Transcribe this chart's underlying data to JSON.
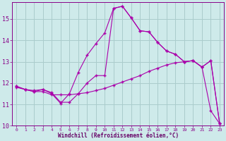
{
  "xlabel": "Windchill (Refroidissement éolien,°C)",
  "background_color": "#ceeaea",
  "grid_color": "#aacccc",
  "line_color": "#aa00aa",
  "xlim": [
    -0.5,
    23.5
  ],
  "ylim": [
    10,
    15.8
  ],
  "yticks": [
    10,
    11,
    12,
    13,
    14,
    15
  ],
  "xticks": [
    0,
    1,
    2,
    3,
    4,
    5,
    6,
    7,
    8,
    9,
    10,
    11,
    12,
    13,
    14,
    15,
    16,
    17,
    18,
    19,
    20,
    21,
    22,
    23
  ],
  "line1_x": [
    0,
    1,
    2,
    3,
    4,
    5,
    6,
    7,
    8,
    9,
    10,
    11,
    12,
    13,
    14,
    15,
    16,
    17,
    18,
    19,
    20,
    21,
    22,
    23
  ],
  "line1_y": [
    11.8,
    11.7,
    11.65,
    11.7,
    11.55,
    11.1,
    11.1,
    11.5,
    12.0,
    12.35,
    12.35,
    15.5,
    15.6,
    15.05,
    14.45,
    14.4,
    13.9,
    13.5,
    13.35,
    13.0,
    13.05,
    12.75,
    13.05,
    10.1
  ],
  "line2_x": [
    0,
    1,
    2,
    3,
    4,
    5,
    6,
    7,
    8,
    9,
    10,
    11,
    12,
    13,
    14,
    15,
    16,
    17,
    18,
    19,
    20,
    21,
    22,
    23
  ],
  "line2_y": [
    11.85,
    11.7,
    11.6,
    11.7,
    11.5,
    11.05,
    11.5,
    12.5,
    13.3,
    13.85,
    14.35,
    15.5,
    15.6,
    15.05,
    14.45,
    14.4,
    13.9,
    13.5,
    13.35,
    13.0,
    13.05,
    12.75,
    13.05,
    10.1
  ],
  "line3_x": [
    0,
    1,
    2,
    3,
    4,
    5,
    6,
    7,
    8,
    9,
    10,
    11,
    12,
    13,
    14,
    15,
    16,
    17,
    18,
    19,
    20,
    21,
    22,
    23
  ],
  "line3_y": [
    11.85,
    11.7,
    11.6,
    11.6,
    11.45,
    11.45,
    11.45,
    11.5,
    11.55,
    11.65,
    11.75,
    11.9,
    12.05,
    12.2,
    12.35,
    12.55,
    12.7,
    12.85,
    12.95,
    13.0,
    13.05,
    12.75,
    10.7,
    10.1
  ]
}
